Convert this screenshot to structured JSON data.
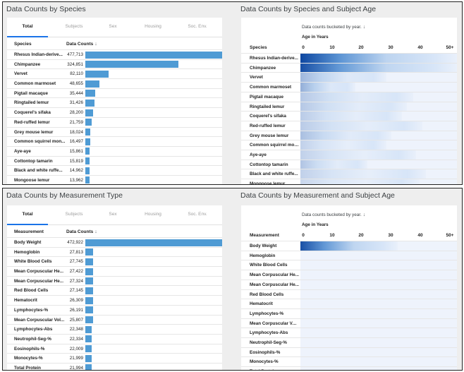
{
  "panels": [
    {
      "left_title": "Data Counts by Species",
      "right_title": "Data Counts by Species and Subject Age",
      "tabs": [
        "Total",
        "Subjects",
        "Sex",
        "Housing",
        "Soc. Env."
      ],
      "active_tab": "Total",
      "col_label": "Species",
      "count_label": "Data Counts",
      "sort_arrow": "↓",
      "rows": [
        {
          "name": "Rhesus Indian-derive...",
          "value": "477,713",
          "count": 477713
        },
        {
          "name": "Chimpanzee",
          "value": "324,851",
          "count": 324851
        },
        {
          "name": "Vervet",
          "value": "82,110",
          "count": 82110
        },
        {
          "name": "Common marmoset",
          "value": "48,655",
          "count": 48655
        },
        {
          "name": "Pigtail macaque",
          "value": "35,444",
          "count": 35444
        },
        {
          "name": "Ringtailed lemur",
          "value": "31,426",
          "count": 31426
        },
        {
          "name": "Coquerel's sifaka",
          "value": "28,200",
          "count": 28200
        },
        {
          "name": "Red-ruffed lemur",
          "value": "21,759",
          "count": 21759
        },
        {
          "name": "Grey mouse lemur",
          "value": "18,024",
          "count": 18024
        },
        {
          "name": "Common squirrel mon...",
          "value": "16,497",
          "count": 16497
        },
        {
          "name": "Aye-aye",
          "value": "15,861",
          "count": 15861
        },
        {
          "name": "Cottontop tamarin",
          "value": "15,819",
          "count": 15819
        },
        {
          "name": "Black and white ruffe...",
          "value": "14,962",
          "count": 14962
        },
        {
          "name": "Mongoose lemur",
          "value": "13,962",
          "count": 13962
        }
      ],
      "heatmap": {
        "subtitle": "Data counts bucketed by year.",
        "subtitle_arrow": "↓",
        "age_label": "Age in Years",
        "row_label": "Species",
        "ticks": [
          "0",
          "10",
          "20",
          "30",
          "40",
          "50+"
        ],
        "rows": [
          {
            "name": "Rhesus Indian-derive...",
            "extent": 1.0,
            "peak": 0.95
          },
          {
            "name": "Chimpanzee",
            "extent": 1.0,
            "peak": 0.9
          },
          {
            "name": "Vervet",
            "extent": 0.55,
            "peak": 0.3
          },
          {
            "name": "Common marmoset",
            "extent": 0.35,
            "peak": 0.35
          },
          {
            "name": "Pigtail macaque",
            "extent": 0.72,
            "peak": 0.2
          },
          {
            "name": "Ringtailed lemur",
            "extent": 0.68,
            "peak": 0.2
          },
          {
            "name": "Coquerel's sifaka",
            "extent": 0.65,
            "peak": 0.18
          },
          {
            "name": "Red-ruffed lemur",
            "extent": 0.78,
            "peak": 0.18
          },
          {
            "name": "Grey mouse lemur",
            "extent": 0.58,
            "peak": 0.25
          },
          {
            "name": "Common squirrel mon...",
            "extent": 0.55,
            "peak": 0.15
          },
          {
            "name": "Aye-aye",
            "extent": 0.74,
            "peak": 0.15
          },
          {
            "name": "Cottontop tamarin",
            "extent": 0.43,
            "peak": 0.22
          },
          {
            "name": "Black and white ruffe...",
            "extent": 0.8,
            "peak": 0.15
          },
          {
            "name": "Mongoose lemur",
            "extent": 0.76,
            "peak": 0.12
          }
        ]
      }
    },
    {
      "left_title": "Data Counts by Measurement Type",
      "right_title": "Data Counts by Measurement and Subject Age",
      "tabs": [
        "Total",
        "Subjects",
        "Sex",
        "Housing",
        "Soc. Env."
      ],
      "active_tab": "Total",
      "col_label": "Measurement",
      "count_label": "Data Counts",
      "sort_arrow": "↓",
      "rows": [
        {
          "name": "Body Weight",
          "value": "472,922",
          "count": 472922
        },
        {
          "name": "Hemoglobin",
          "value": "27,813",
          "count": 27813
        },
        {
          "name": "White Blood Cells",
          "value": "27,745",
          "count": 27745
        },
        {
          "name": "Mean Corpuscular He...",
          "value": "27,422",
          "count": 27422
        },
        {
          "name": "Mean Corpuscular He...",
          "value": "27,324",
          "count": 27324
        },
        {
          "name": "Red Blood Cells",
          "value": "27,145",
          "count": 27145
        },
        {
          "name": "Hematocrit",
          "value": "26,309",
          "count": 26309
        },
        {
          "name": "Lymphocytes-%",
          "value": "26,191",
          "count": 26191
        },
        {
          "name": "Mean Corpuscular Vol...",
          "value": "25,807",
          "count": 25807
        },
        {
          "name": "Lymphocytes-Abs",
          "value": "22,348",
          "count": 22348
        },
        {
          "name": "Neutrophil-Seg-%",
          "value": "22,334",
          "count": 22334
        },
        {
          "name": "Eosinophils-%",
          "value": "22,009",
          "count": 22009
        },
        {
          "name": "Monocytes-%",
          "value": "21,999",
          "count": 21999
        },
        {
          "name": "Total Protein",
          "value": "21,994",
          "count": 21994
        }
      ],
      "heatmap": {
        "subtitle": "Data counts bucketed by year.",
        "subtitle_arrow": "↓",
        "age_label": "Age in Years",
        "row_label": "Measurement",
        "ticks": [
          "0",
          "10",
          "20",
          "30",
          "40",
          "50+"
        ],
        "rows": [
          {
            "name": "Body Weight",
            "extent": 0.62,
            "peak": 0.9
          },
          {
            "name": "Hemoglobin",
            "extent": 0.0,
            "peak": 0.0
          },
          {
            "name": "White Blood Cells",
            "extent": 0.0,
            "peak": 0.0
          },
          {
            "name": "Mean Corpuscular He...",
            "extent": 0.0,
            "peak": 0.0
          },
          {
            "name": "Mean Corpuscular He...",
            "extent": 0.0,
            "peak": 0.0
          },
          {
            "name": "Red Blood Cells",
            "extent": 0.0,
            "peak": 0.0
          },
          {
            "name": "Hematocrit",
            "extent": 0.0,
            "peak": 0.0
          },
          {
            "name": "Lymphocytes-%",
            "extent": 0.0,
            "peak": 0.0
          },
          {
            "name": "Mean Corpuscular Vol...",
            "extent": 0.0,
            "peak": 0.0
          },
          {
            "name": "Lymphocytes-Abs",
            "extent": 0.0,
            "peak": 0.0
          },
          {
            "name": "Neutrophil-Seg-%",
            "extent": 0.0,
            "peak": 0.0
          },
          {
            "name": "Eosinophils-%",
            "extent": 0.0,
            "peak": 0.0
          },
          {
            "name": "Monocytes-%",
            "extent": 0.0,
            "peak": 0.0
          },
          {
            "name": "Total Protein",
            "extent": 0.0,
            "peak": 0.0
          }
        ]
      }
    }
  ],
  "colors": {
    "bar": "#4f9bd4",
    "heat_dark": "#0d47a1",
    "heat_light": "#eef3fc",
    "tab_active": "#1a73e8"
  }
}
